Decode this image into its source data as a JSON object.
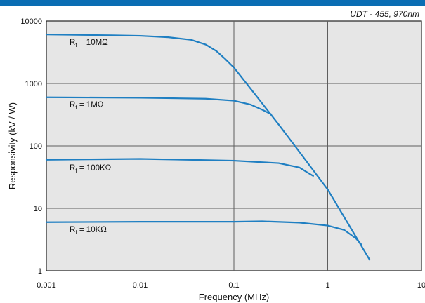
{
  "chart_data": {
    "type": "line",
    "annotation": "UDT - 455, 970nm",
    "xlabel": "Frequency (MHz)",
    "ylabel": "Responsivity (kV / W)",
    "xscale": "log",
    "yscale": "log",
    "xlim": [
      0.001,
      10
    ],
    "ylim": [
      1,
      10000
    ],
    "grid": true,
    "xticks": [
      "0.001",
      "0.01",
      "0.1",
      "1",
      "10"
    ],
    "yticks": [
      "1",
      "10",
      "100",
      "1000",
      "10000"
    ],
    "series": [
      {
        "name": "Rf = 10MΩ",
        "label_main": "R",
        "label_sub": "f",
        "label_rest": " = 10MΩ",
        "points": [
          [
            0.001,
            6100
          ],
          [
            0.005,
            5900
          ],
          [
            0.01,
            5800
          ],
          [
            0.02,
            5500
          ],
          [
            0.035,
            5000
          ],
          [
            0.05,
            4200
          ],
          [
            0.065,
            3300
          ],
          [
            0.08,
            2500
          ],
          [
            0.1,
            1800
          ],
          [
            0.2,
            480
          ],
          [
            0.3,
            220
          ],
          [
            0.5,
            80
          ],
          [
            1,
            20
          ],
          [
            2,
            3.5
          ],
          [
            2.8,
            1.5
          ]
        ]
      },
      {
        "name": "Rf = 1MΩ",
        "label_main": "R",
        "label_sub": "f",
        "label_rest": " = 1MΩ",
        "points": [
          [
            0.001,
            600
          ],
          [
            0.01,
            590
          ],
          [
            0.05,
            570
          ],
          [
            0.1,
            530
          ],
          [
            0.15,
            460
          ],
          [
            0.2,
            380
          ],
          [
            0.25,
            320
          ]
        ]
      },
      {
        "name": "Rf = 100KΩ",
        "label_main": "R",
        "label_sub": "f",
        "label_rest": " = 100KΩ",
        "points": [
          [
            0.001,
            60
          ],
          [
            0.003,
            61
          ],
          [
            0.01,
            62
          ],
          [
            0.1,
            58
          ],
          [
            0.3,
            53
          ],
          [
            0.5,
            45
          ],
          [
            0.6,
            38
          ],
          [
            0.7,
            33
          ]
        ]
      },
      {
        "name": "Rf = 10KΩ",
        "label_main": "R",
        "label_sub": "f",
        "label_rest": " = 10KΩ",
        "points": [
          [
            0.001,
            6.0
          ],
          [
            0.01,
            6.1
          ],
          [
            0.1,
            6.1
          ],
          [
            0.2,
            6.2
          ],
          [
            0.5,
            5.9
          ],
          [
            1,
            5.3
          ],
          [
            1.5,
            4.5
          ],
          [
            2,
            3.3
          ],
          [
            2.3,
            2.6
          ]
        ]
      }
    ],
    "line_color": "#1f7fc2",
    "plot_bg": "#e6e6e6",
    "grid_color": "#5e5e5e"
  }
}
